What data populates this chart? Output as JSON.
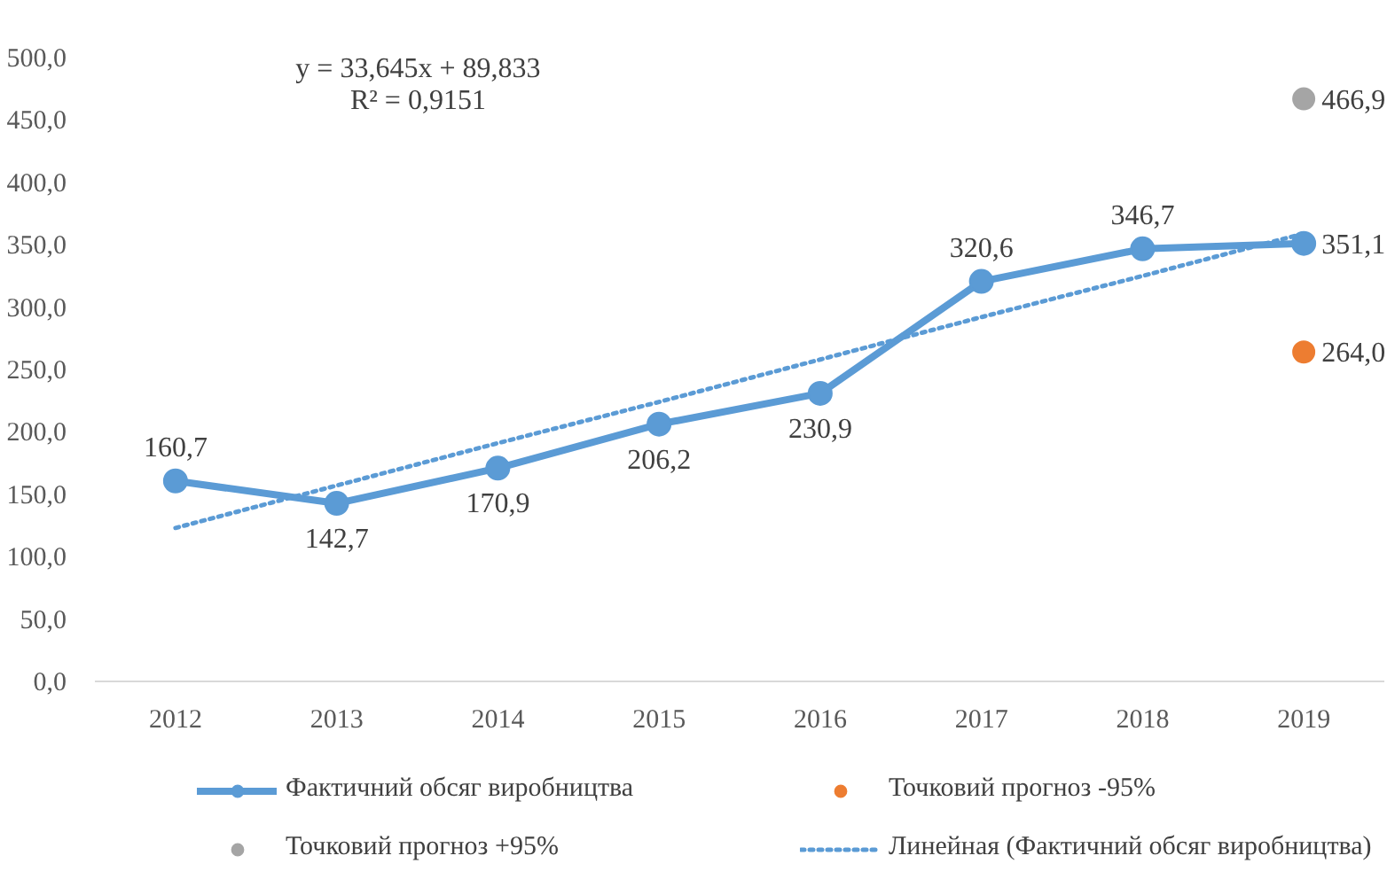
{
  "chart_data": {
    "type": "line",
    "categories": [
      "2012",
      "2013",
      "2014",
      "2015",
      "2016",
      "2017",
      "2018",
      "2019"
    ],
    "series": [
      {
        "name": "Фактичний обсяг виробництва",
        "type": "line",
        "color": "#5b9bd5",
        "marker": "circle",
        "line_style": "solid",
        "values": [
          160.7,
          142.7,
          170.9,
          206.2,
          230.9,
          320.6,
          346.7,
          351.1
        ],
        "value_labels": [
          "160,7",
          "142,7",
          "170,9",
          "206,2",
          "230,9",
          "320,6",
          "346,7",
          "351,1"
        ]
      },
      {
        "name": "Точковий прогноз -95%",
        "type": "scatter",
        "color": "#ed7d31",
        "marker": "circle",
        "values": [
          null,
          null,
          null,
          null,
          null,
          null,
          null,
          264.0
        ],
        "value_labels": [
          null,
          null,
          null,
          null,
          null,
          null,
          null,
          "264,0"
        ]
      },
      {
        "name": "Точковий прогноз +95%",
        "type": "scatter",
        "color": "#a5a5a5",
        "marker": "circle",
        "values": [
          null,
          null,
          null,
          null,
          null,
          null,
          null,
          466.9
        ],
        "value_labels": [
          null,
          null,
          null,
          null,
          null,
          null,
          null,
          "466,9"
        ]
      },
      {
        "name": "Линейная (Фактичний обсяг виробництва)",
        "type": "line",
        "color": "#5b9bd5",
        "marker": "none",
        "line_style": "dotted",
        "values": [
          123,
          157,
          191,
          224,
          258,
          292,
          325,
          359
        ]
      }
    ],
    "ylim": [
      0,
      500
    ],
    "yticks": [
      {
        "value": 0,
        "label": "0,0"
      },
      {
        "value": 50,
        "label": "50,0"
      },
      {
        "value": 100,
        "label": "100,0"
      },
      {
        "value": 150,
        "label": "150,0"
      },
      {
        "value": 200,
        "label": "200,0"
      },
      {
        "value": 250,
        "label": "250,0"
      },
      {
        "value": 300,
        "label": "300,0"
      },
      {
        "value": 350,
        "label": "350,0"
      },
      {
        "value": 400,
        "label": "400,0"
      },
      {
        "value": 450,
        "label": "450,0"
      },
      {
        "value": 500,
        "label": "500,0"
      }
    ],
    "grid": false,
    "legend": "bottom",
    "annotations": [
      "y = 33,645x + 89,833",
      "R² = 0,9151"
    ]
  }
}
